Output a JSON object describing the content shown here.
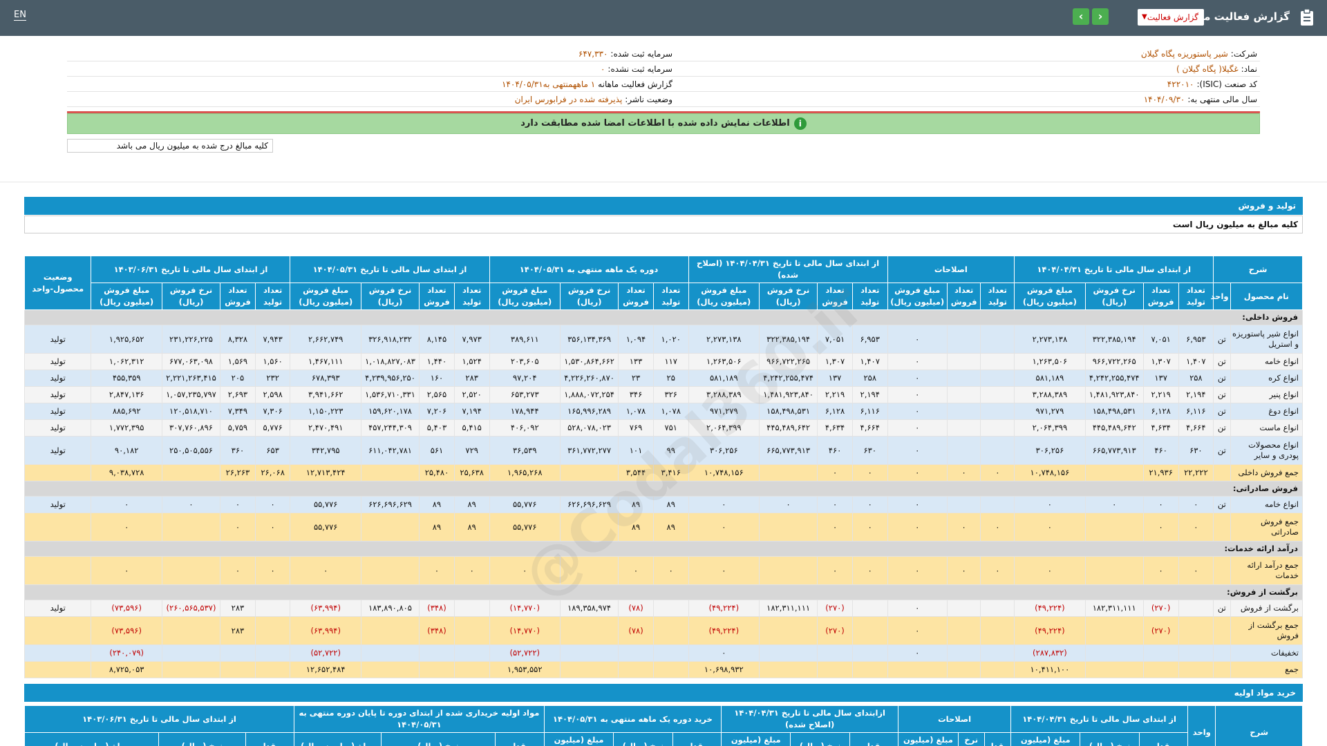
{
  "topbar": {
    "lang": "EN",
    "title": "گزارش فعالیت ماهانه",
    "report_select": "گزارش فعالیت",
    "prev": "‹",
    "next": "›"
  },
  "info": {
    "company_label": "شرکت:",
    "company": "شیر پاستوریزه پگاه گیلان",
    "symbol_label": "نماد:",
    "symbol": "غگیلا( پگاه گیلان )",
    "isic_label": "کد صنعت (ISIC):",
    "isic": "۴۲۲۰۱۰",
    "fy_label": "سال مالی منتهی به:",
    "fy": "۱۴۰۴/۰۹/۳۰",
    "capital_label": "سرمایه ثبت شده:",
    "capital": "۶۴۷,۳۳۰",
    "unreg_label": "سرمایه ثبت نشده:",
    "unreg": "۰",
    "period_label": "گزارش فعالیت ماهانه",
    "period": "۱ ماهه",
    "period_end": "منتهی به۱۴۰۴/۰۵/۳۱",
    "status_label": "وضعیت ناشر:",
    "status": "پذیرفته شده در فرابورس ایران"
  },
  "notice": "اطلاعات نمایش داده شده با اطلاعات امضا شده مطابقت دارد",
  "units_note": "کلیه مبالغ درج شده به میلیون ریال می باشد",
  "section1": {
    "title": "تولید و فروش",
    "subtitle": "کلیه مبالغ به میلیون ریال است"
  },
  "watermark": "@Codal360.ir",
  "table1": {
    "group_headers": [
      "شرح",
      "از ابتدای سال مالی تا تاریخ ۱۴۰۴/۰۴/۳۱",
      "اصلاحات",
      "از ابتدای سال مالی تا تاریخ ۱۴۰۴/۰۴/۳۱ (اصلاح شده)",
      "دوره یک ماهه منتهی به ۱۴۰۴/۰۵/۳۱",
      "از ابتدای سال مالی تا تاریخ ۱۴۰۴/۰۵/۳۱",
      "از ابتدای سال مالی تا تاریخ ۱۴۰۳/۰۶/۳۱",
      "وضعیت محصول-واحد"
    ],
    "sub_headers": [
      "نام محصول",
      "واحد",
      "تعداد تولید",
      "تعداد فروش",
      "نرخ فروش (ریال)",
      "مبلغ فروش (میلیون ریال)",
      "تعداد تولید",
      "تعداد فروش",
      "مبلغ فروش (میلیون ریال)",
      "تعداد تولید",
      "تعداد فروش",
      "نرخ فروش (ریال)",
      "مبلغ فروش (میلیون ریال)",
      "تعداد تولید",
      "تعداد فروش",
      "نرخ فروش (ریال)",
      "مبلغ فروش (میلیون ریال)",
      "تعداد تولید",
      "تعداد فروش",
      "نرخ فروش (ریال)",
      "مبلغ فروش (میلیون ریال)",
      "تعداد تولید",
      "تعداد فروش",
      "نرخ فروش (ریال)",
      "مبلغ فروش (میلیون ریال)"
    ],
    "rows": [
      {
        "type": "cat",
        "cells": [
          "فروش داخلی:"
        ]
      },
      {
        "type": "blue",
        "tall": true,
        "cells": [
          "انواع شیر پاستوریزه و استریل",
          "تن",
          "۶,۹۵۳",
          "۷,۰۵۱",
          "۳۲۲,۳۸۵,۱۹۴",
          "۲,۲۷۳,۱۳۸",
          "",
          "",
          "۰",
          "۶,۹۵۳",
          "۷,۰۵۱",
          "۳۲۲,۳۸۵,۱۹۴",
          "۲,۲۷۳,۱۳۸",
          "۱,۰۲۰",
          "۱,۰۹۴",
          "۳۵۶,۱۳۴,۳۶۹",
          "۳۸۹,۶۱۱",
          "۷,۹۷۳",
          "۸,۱۴۵",
          "۳۲۶,۹۱۸,۲۳۲",
          "۲,۶۶۲,۷۴۹",
          "۷,۹۴۳",
          "۸,۳۲۸",
          "۲۳۱,۲۲۶,۲۲۵",
          "۱,۹۲۵,۶۵۲",
          "تولید"
        ]
      },
      {
        "type": "white",
        "cells": [
          "انواع خامه",
          "تن",
          "۱,۴۰۷",
          "۱,۳۰۷",
          "۹۶۶,۷۲۲,۲۶۵",
          "۱,۲۶۳,۵۰۶",
          "",
          "",
          "۰",
          "۱,۴۰۷",
          "۱,۳۰۷",
          "۹۶۶,۷۲۲,۲۶۵",
          "۱,۲۶۳,۵۰۶",
          "۱۱۷",
          "۱۳۳",
          "۱,۵۳۰,۸۶۴,۶۶۲",
          "۲۰۳,۶۰۵",
          "۱,۵۲۴",
          "۱,۴۴۰",
          "۱,۰۱۸,۸۲۷,۰۸۳",
          "۱,۴۶۷,۱۱۱",
          "۱,۵۶۰",
          "۱,۵۶۹",
          "۶۷۷,۰۶۳,۰۹۸",
          "۱,۰۶۲,۳۱۲",
          "تولید"
        ]
      },
      {
        "type": "blue",
        "cells": [
          "انواع کره",
          "تن",
          "۲۵۸",
          "۱۳۷",
          "۴,۲۴۲,۲۵۵,۴۷۴",
          "۵۸۱,۱۸۹",
          "",
          "",
          "۰",
          "۲۵۸",
          "۱۳۷",
          "۴,۲۴۲,۲۵۵,۴۷۴",
          "۵۸۱,۱۸۹",
          "۲۵",
          "۲۳",
          "۴,۲۲۶,۲۶۰,۸۷۰",
          "۹۷,۲۰۴",
          "۲۸۳",
          "۱۶۰",
          "۴,۲۳۹,۹۵۶,۲۵۰",
          "۶۷۸,۳۹۳",
          "۲۳۲",
          "۲۰۵",
          "۲,۲۲۱,۲۶۳,۴۱۵",
          "۴۵۵,۳۵۹",
          "تولید"
        ]
      },
      {
        "type": "white",
        "cells": [
          "انواع پنیر",
          "تن",
          "۲,۱۹۴",
          "۲,۲۱۹",
          "۱,۴۸۱,۹۲۳,۸۴۰",
          "۳,۲۸۸,۳۸۹",
          "",
          "",
          "۰",
          "۲,۱۹۴",
          "۲,۲۱۹",
          "۱,۴۸۱,۹۲۳,۸۴۰",
          "۳,۲۸۸,۳۸۹",
          "۳۲۶",
          "۳۴۶",
          "۱,۸۸۸,۰۷۲,۲۵۴",
          "۶۵۳,۲۷۳",
          "۲,۵۲۰",
          "۲,۵۶۵",
          "۱,۵۳۶,۷۱۰,۳۳۱",
          "۳,۹۴۱,۶۶۲",
          "۲,۵۹۸",
          "۲,۶۹۳",
          "۱,۰۵۷,۲۳۵,۷۹۷",
          "۲,۸۴۷,۱۳۶",
          "تولید"
        ]
      },
      {
        "type": "blue",
        "cells": [
          "انواع دوغ",
          "تن",
          "۶,۱۱۶",
          "۶,۱۲۸",
          "۱۵۸,۴۹۸,۵۳۱",
          "۹۷۱,۲۷۹",
          "",
          "",
          "۰",
          "۶,۱۱۶",
          "۶,۱۲۸",
          "۱۵۸,۴۹۸,۵۳۱",
          "۹۷۱,۲۷۹",
          "۱,۰۷۸",
          "۱,۰۷۸",
          "۱۶۵,۹۹۶,۲۸۹",
          "۱۷۸,۹۴۴",
          "۷,۱۹۴",
          "۷,۲۰۶",
          "۱۵۹,۶۲۰,۱۷۸",
          "۱,۱۵۰,۲۲۳",
          "۷,۳۰۶",
          "۷,۳۴۹",
          "۱۲۰,۵۱۸,۷۱۰",
          "۸۸۵,۶۹۲",
          "تولید"
        ]
      },
      {
        "type": "white",
        "cells": [
          "انواع ماست",
          "تن",
          "۴,۶۶۴",
          "۴,۶۳۴",
          "۴۴۵,۴۸۹,۶۴۲",
          "۲,۰۶۴,۳۹۹",
          "",
          "",
          "۰",
          "۴,۶۶۴",
          "۴,۶۳۴",
          "۴۴۵,۴۸۹,۶۴۲",
          "۲,۰۶۴,۳۹۹",
          "۷۵۱",
          "۷۶۹",
          "۵۲۸,۰۷۸,۰۲۳",
          "۴۰۶,۰۹۲",
          "۵,۴۱۵",
          "۵,۴۰۳",
          "۴۵۷,۲۴۴,۳۰۹",
          "۲,۴۷۰,۴۹۱",
          "۵,۷۷۶",
          "۵,۷۵۹",
          "۳۰۷,۷۶۰,۸۹۶",
          "۱,۷۷۲,۳۹۵",
          "تولید"
        ]
      },
      {
        "type": "blue",
        "tall": true,
        "cells": [
          "انواع محصولات پودری و سایر",
          "تن",
          "۶۳۰",
          "۴۶۰",
          "۶۶۵,۷۷۳,۹۱۳",
          "۳۰۶,۲۵۶",
          "",
          "",
          "۰",
          "۶۳۰",
          "۴۶۰",
          "۶۶۵,۷۷۳,۹۱۳",
          "۳۰۶,۲۵۶",
          "۹۹",
          "۱۰۱",
          "۳۶۱,۷۷۲,۲۷۷",
          "۳۶,۵۳۹",
          "۷۲۹",
          "۵۶۱",
          "۶۱۱,۰۴۲,۷۸۱",
          "۳۴۲,۷۹۵",
          "۶۵۳",
          "۳۶۰",
          "۲۵۰,۵۰۵,۵۵۶",
          "۹۰,۱۸۲",
          "تولید"
        ]
      },
      {
        "type": "total",
        "cells": [
          "جمع فروش داخلی",
          "",
          "۲۲,۲۲۲",
          "۲۱,۹۳۶",
          "",
          "۱۰,۷۴۸,۱۵۶",
          "۰",
          "۰",
          "۰",
          "۰",
          "۰",
          "",
          "۱۰,۷۴۸,۱۵۶",
          "۳,۴۱۶",
          "۳,۵۴۴",
          "",
          "۱,۹۶۵,۲۶۸",
          "۲۵,۶۳۸",
          "۲۵,۴۸۰",
          "",
          "۱۲,۷۱۳,۴۲۴",
          "۲۶,۰۶۸",
          "۲۶,۲۶۳",
          "",
          "۹,۰۳۸,۷۲۸",
          ""
        ]
      },
      {
        "type": "cat",
        "cells": [
          "فروش صادراتی:"
        ]
      },
      {
        "type": "blue",
        "cells": [
          "انواع خامه",
          "تن",
          "۰",
          "۰",
          "۰",
          "۰",
          "",
          "",
          "۰",
          "۰",
          "۰",
          "۰",
          "۰",
          "۸۹",
          "۸۹",
          "۶۲۶,۶۹۶,۶۲۹",
          "۵۵,۷۷۶",
          "۸۹",
          "۸۹",
          "۶۲۶,۶۹۶,۶۲۹",
          "۵۵,۷۷۶",
          "۰",
          "۰",
          "۰",
          "۰",
          "تولید"
        ]
      },
      {
        "type": "total",
        "tall": true,
        "cells": [
          "جمع فروش صادراتی",
          "",
          "۰",
          "۰",
          "",
          "۰",
          "۰",
          "۰",
          "۰",
          "۰",
          "۰",
          "",
          "۰",
          "۸۹",
          "۸۹",
          "",
          "۵۵,۷۷۶",
          "۸۹",
          "۸۹",
          "",
          "۵۵,۷۷۶",
          "۰",
          "۰",
          "",
          "۰",
          ""
        ]
      },
      {
        "type": "cat",
        "cells": [
          "درآمد ارائه خدمات:"
        ]
      },
      {
        "type": "total",
        "tall": true,
        "cells": [
          "جمع درآمد ارائه خدمات",
          "",
          "۰",
          "۰",
          "",
          "۰",
          "۰",
          "۰",
          "۰",
          "۰",
          "۰",
          "",
          "۰",
          "۰",
          "۰",
          "",
          "۰",
          "۰",
          "۰",
          "",
          "۰",
          "۰",
          "۰",
          "",
          "۰",
          ""
        ]
      },
      {
        "type": "cat",
        "cells": [
          "برگشت از فروش:"
        ]
      },
      {
        "type": "white",
        "cells": [
          "برگشت از فروش",
          "تن",
          "",
          "(۲۷۰)",
          "۱۸۲,۳۱۱,۱۱۱",
          "(۴۹,۲۲۴)",
          "",
          "",
          "۰",
          "",
          "(۲۷۰)",
          "۱۸۲,۳۱۱,۱۱۱",
          "(۴۹,۲۲۴)",
          "",
          "(۷۸)",
          "۱۸۹,۳۵۸,۹۷۴",
          "(۱۴,۷۷۰)",
          "",
          "(۳۴۸)",
          "۱۸۳,۸۹۰,۸۰۵",
          "(۶۳,۹۹۴)",
          "",
          "۲۸۳",
          "(۲۶۰,۵۶۵,۵۳۷)",
          "(۷۳,۵۹۶)",
          "تولید"
        ]
      },
      {
        "type": "total",
        "tall": true,
        "cells": [
          "جمع برگشت از فروش",
          "",
          "",
          "(۲۷۰)",
          "",
          "(۴۹,۲۲۴)",
          "",
          "",
          "۰",
          "",
          "(۲۷۰)",
          "",
          "(۴۹,۲۲۴)",
          "",
          "(۷۸)",
          "",
          "(۱۴,۷۷۰)",
          "",
          "(۳۴۸)",
          "",
          "(۶۳,۹۹۴)",
          "",
          "۲۸۳",
          "",
          "(۷۳,۵۹۶)",
          ""
        ]
      },
      {
        "type": "blue",
        "cells": [
          "تخفیفات",
          "",
          "",
          "",
          "",
          "(۲۸۷,۸۳۲)",
          "",
          "",
          "۰",
          "",
          "",
          "",
          "۰",
          "",
          "",
          "",
          "(۵۲,۷۲۲)",
          "",
          "",
          "",
          "(۵۲,۷۲۲)",
          "",
          "",
          "",
          "(۲۴۰,۰۷۹)",
          ""
        ]
      },
      {
        "type": "total",
        "cells": [
          "جمع",
          "",
          "",
          "",
          "",
          "۱۰,۴۱۱,۱۰۰",
          "",
          "",
          "",
          "",
          "",
          "",
          "۱۰,۶۹۸,۹۳۲",
          "",
          "",
          "",
          "۱,۹۵۳,۵۵۲",
          "",
          "",
          "",
          "۱۲,۶۵۲,۴۸۴",
          "",
          "",
          "",
          "۸,۷۲۵,۰۵۳",
          ""
        ]
      }
    ]
  },
  "section2": {
    "title": "خرید مواد اولیه"
  },
  "table2": {
    "group_headers": [
      "شرح",
      "واحد",
      "از ابتدای سال مالی تا تاریخ ۱۴۰۴/۰۴/۳۱",
      "اصلاحات",
      "ازابتدای سال مالی تا تاریخ ۱۴۰۴/۰۴/۳۱ (اصلاح شده)",
      "خرید دوره یک ماهه منتهی به ۱۴۰۴/۰۵/۳۱",
      "مواد اولیه خریداری شده از ابتدای دوره تا پایان دوره منتهی به ۱۴۰۴/۰۵/۳۱",
      "از ابتدای سال مالی تا تاریخ ۱۴۰۳/۰۶/۳۱"
    ],
    "sub_headers": [
      "مقدار",
      "نرخ (ریال)",
      "مبلغ (میلیون ریال)",
      "مقدار",
      "نرخ (ریال)",
      "مبلغ (میلیون ریال)",
      "مقدار",
      "نرخ (ریال)",
      "مبلغ (میلیون ریال)",
      "مقدار",
      "نرخ (ریال)",
      "مبلغ (میلیون ریال)",
      "مقدار",
      "نرخ (ریال)",
      "مبلغ (میلیون ریال)",
      "مقدار",
      "نرخ (ریال)",
      "مبلغ (میلیون ریال)"
    ]
  }
}
